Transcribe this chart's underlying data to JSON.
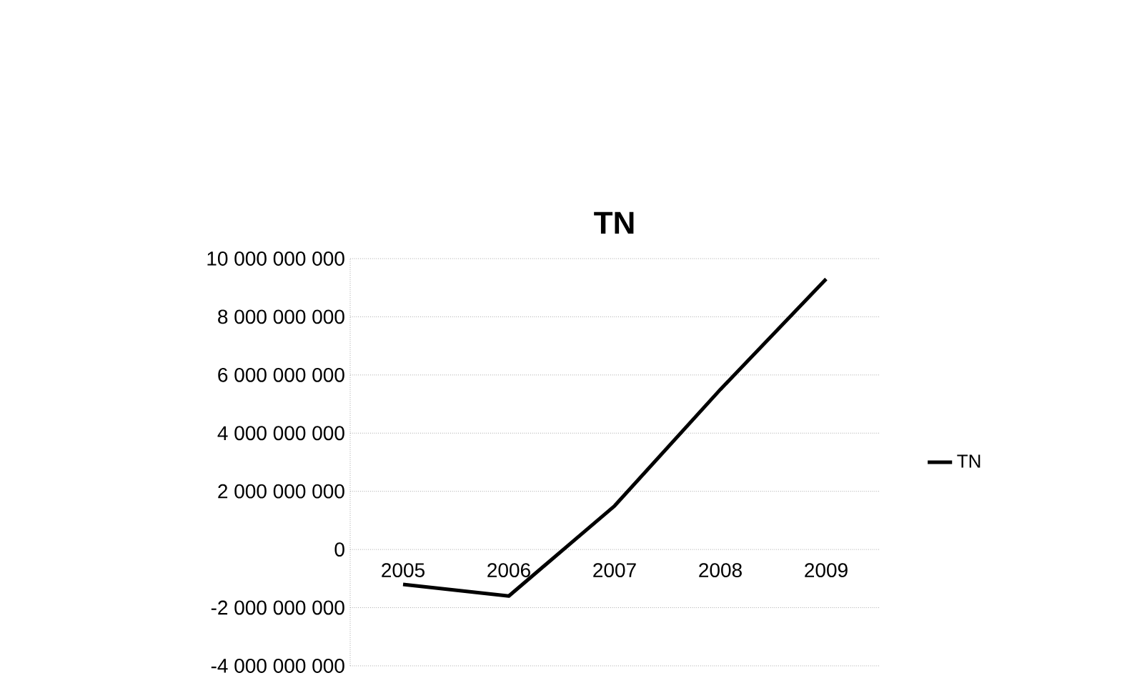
{
  "chart_data": {
    "type": "line",
    "title": "TN",
    "categories": [
      "2005",
      "2006",
      "2007",
      "2008",
      "2009"
    ],
    "series": [
      {
        "name": "TN",
        "color": "#000000",
        "values": [
          -1200000000,
          -1600000000,
          1500000000,
          5500000000,
          9300000000
        ]
      }
    ],
    "ylim": [
      -4000000000,
      10000000000
    ],
    "yticks": [
      {
        "value": -4000000000,
        "label": "-4 000 000 000"
      },
      {
        "value": -2000000000,
        "label": "-2 000 000 000"
      },
      {
        "value": 0,
        "label": "0"
      },
      {
        "value": 2000000000,
        "label": "2 000 000 000"
      },
      {
        "value": 4000000000,
        "label": "4 000 000 000"
      },
      {
        "value": 6000000000,
        "label": "6 000 000 000"
      },
      {
        "value": 8000000000,
        "label": "8 000 000 000"
      },
      {
        "value": 10000000000,
        "label": "10 000 000 000"
      }
    ],
    "grid": "y",
    "legend": "right",
    "marker": "none",
    "line_style": "solid"
  }
}
